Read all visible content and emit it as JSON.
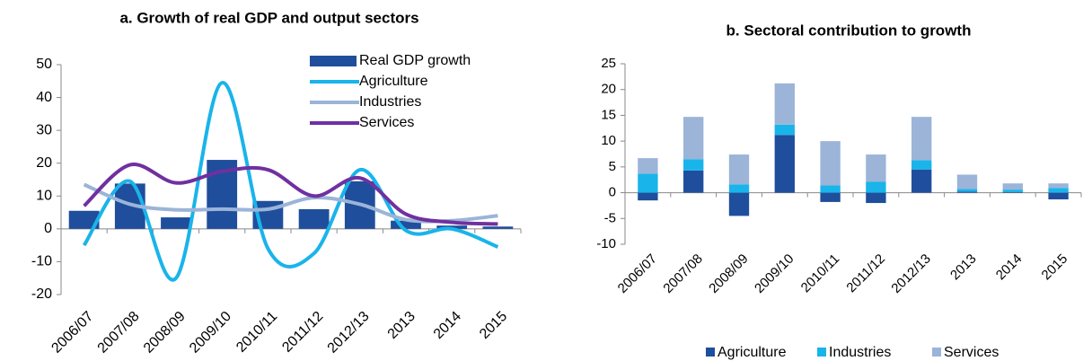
{
  "chart_data": [
    {
      "type": "combo",
      "title": "a. Growth of real GDP and output sectors",
      "categories": [
        "2006/07",
        "2007/08",
        "2008/09",
        "2009/10",
        "2010/11",
        "2011/12",
        "2012/13",
        "2013",
        "2014",
        "2015"
      ],
      "series": [
        {
          "name": "Real GDP growth",
          "type": "bar",
          "color": "#1f4e9c",
          "values": [
            5.5,
            13.8,
            3.5,
            21,
            8.5,
            6,
            14.5,
            2.5,
            1,
            0.7
          ]
        },
        {
          "name": "Agriculture",
          "type": "line",
          "color": "#19b4ea",
          "values": [
            -5,
            14.5,
            -15,
            44.5,
            -6,
            -7.5,
            18,
            -0.5,
            0,
            -5.5
          ]
        },
        {
          "name": "Industries",
          "type": "line",
          "color": "#9bb4d8",
          "values": [
            13.5,
            7.5,
            5.8,
            6,
            6,
            9.5,
            7.5,
            2.8,
            2.5,
            4
          ]
        },
        {
          "name": "Services",
          "type": "line",
          "color": "#7030a0",
          "values": [
            7,
            19.5,
            14,
            17.5,
            18,
            10,
            15.5,
            4.5,
            2,
            1.5
          ]
        }
      ],
      "ylim": [
        -20,
        50
      ],
      "yticks": [
        -20,
        -10,
        0,
        10,
        20,
        30,
        40,
        50
      ],
      "legend": "upper right"
    },
    {
      "type": "stacked_bar",
      "title": "b. Sectoral contribution to growth",
      "categories": [
        "2006/07",
        "2007/08",
        "2008/09",
        "2009/10",
        "2010/11",
        "2011/12",
        "2012/13",
        "2013",
        "2014",
        "2015"
      ],
      "series": [
        {
          "name": "Agriculture",
          "color": "#1f4e9c",
          "values": [
            -1.5,
            4.3,
            -4.5,
            11.2,
            -1.8,
            -2,
            4.5,
            0.2,
            0.1,
            -1.3
          ]
        },
        {
          "name": "Industries",
          "color": "#19b4ea",
          "values": [
            3.7,
            2.2,
            1.6,
            2,
            1.4,
            2.1,
            1.8,
            0.5,
            0.5,
            0.9
          ]
        },
        {
          "name": "Services",
          "color": "#9bb4d8",
          "values": [
            3,
            8.2,
            5.8,
            8,
            8.6,
            5.3,
            8.4,
            2.8,
            1.2,
            0.9
          ]
        }
      ],
      "ylim": [
        -10,
        25
      ],
      "yticks": [
        -10,
        -5,
        0,
        5,
        10,
        15,
        20,
        25
      ],
      "legend": "bottom"
    }
  ]
}
